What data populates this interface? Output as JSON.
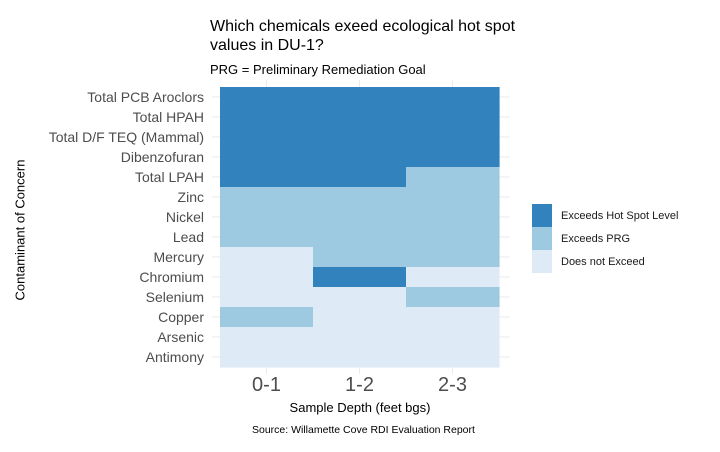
{
  "chart_data": {
    "type": "heatmap",
    "title": "Which chemicals exeed ecological hot spot values in DU-1?",
    "subtitle": "PRG = Preliminary Remediation Goal",
    "xlabel": "Sample Depth (feet bgs)",
    "ylabel": "Contaminant of Concern",
    "caption": "Source: Willamette Cove RDI Evaluation Report",
    "x_categories": [
      "0-1",
      "1-2",
      "2-3"
    ],
    "y_categories": [
      "Total PCB Aroclors",
      "Total HPAH",
      "Total D/F TEQ (Mammal)",
      "Dibenzofuran",
      "Total LPAH",
      "Zinc",
      "Nickel",
      "Lead",
      "Mercury",
      "Chromium",
      "Selenium",
      "Copper",
      "Arsenic",
      "Antimony"
    ],
    "levels": [
      {
        "name": "Exceeds Hot Spot Level",
        "color": "#3182bd"
      },
      {
        "name": "Exceeds PRG",
        "color": "#9ecae1"
      },
      {
        "name": "Does not Exceed",
        "color": "#deebf7"
      }
    ],
    "values": [
      [
        "Exceeds Hot Spot Level",
        "Exceeds Hot Spot Level",
        "Exceeds Hot Spot Level"
      ],
      [
        "Exceeds Hot Spot Level",
        "Exceeds Hot Spot Level",
        "Exceeds Hot Spot Level"
      ],
      [
        "Exceeds Hot Spot Level",
        "Exceeds Hot Spot Level",
        "Exceeds Hot Spot Level"
      ],
      [
        "Exceeds Hot Spot Level",
        "Exceeds Hot Spot Level",
        "Exceeds Hot Spot Level"
      ],
      [
        "Exceeds Hot Spot Level",
        "Exceeds Hot Spot Level",
        "Exceeds PRG"
      ],
      [
        "Exceeds PRG",
        "Exceeds PRG",
        "Exceeds PRG"
      ],
      [
        "Exceeds PRG",
        "Exceeds PRG",
        "Exceeds PRG"
      ],
      [
        "Exceeds PRG",
        "Exceeds PRG",
        "Exceeds PRG"
      ],
      [
        "Does not Exceed",
        "Exceeds PRG",
        "Exceeds PRG"
      ],
      [
        "Does not Exceed",
        "Exceeds Hot Spot Level",
        "Does not Exceed"
      ],
      [
        "Does not Exceed",
        "Does not Exceed",
        "Exceeds PRG"
      ],
      [
        "Exceeds PRG",
        "Does not Exceed",
        "Does not Exceed"
      ],
      [
        "Does not Exceed",
        "Does not Exceed",
        "Does not Exceed"
      ],
      [
        "Does not Exceed",
        "Does not Exceed",
        "Does not Exceed"
      ]
    ],
    "legend_position": "right",
    "grid": true
  }
}
